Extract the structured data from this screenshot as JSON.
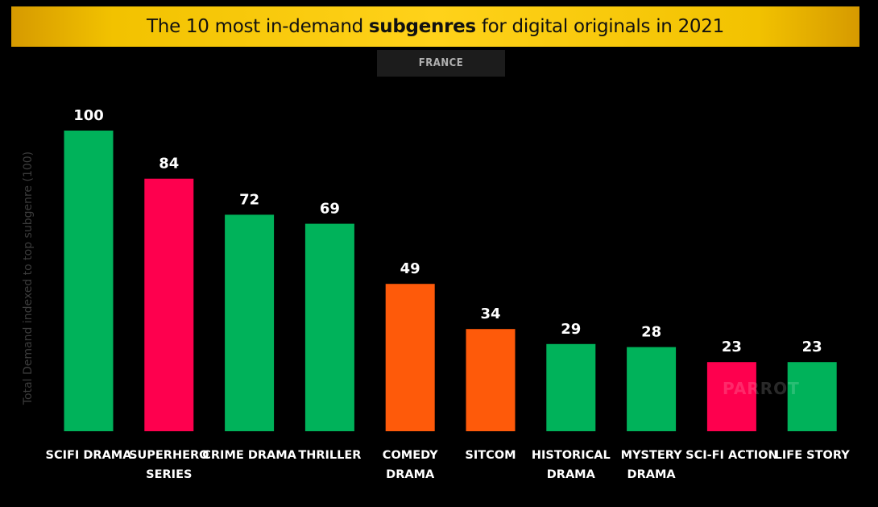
{
  "header": {
    "title_before": "The 10 most in-demand ",
    "title_bold": "subgenres",
    "title_after": " for digital originals in 2021",
    "subtitle": "FRANCE"
  },
  "watermark": "PARROT",
  "colors": {
    "green": "#00b25a",
    "red": "#fe004e",
    "orange": "#fe5a0a",
    "title_bar": "#ffd21a"
  },
  "chart_data": {
    "type": "bar",
    "title": "The 10 most in-demand subgenres for digital originals in 2021",
    "subtitle": "FRANCE",
    "xlabel": "",
    "ylabel": "Total Demand indexed to top subgenre (100)",
    "ylim": [
      0,
      100
    ],
    "grid": false,
    "legend": "none",
    "categories": [
      [
        "SCIFI DRAMA"
      ],
      [
        "SUPERHERO",
        "SERIES"
      ],
      [
        "CRIME DRAMA"
      ],
      [
        "THRILLER"
      ],
      [
        "COMEDY",
        "DRAMA"
      ],
      [
        "SITCOM"
      ],
      [
        "HISTORICAL",
        "DRAMA"
      ],
      [
        "MYSTERY",
        "DRAMA"
      ],
      [
        "SCI-FI ACTION"
      ],
      [
        "LIFE STORY"
      ]
    ],
    "values": [
      100,
      84,
      72,
      69,
      49,
      34,
      29,
      28,
      23,
      23
    ],
    "bar_colors": [
      "#00b25a",
      "#fe004e",
      "#00b25a",
      "#00b25a",
      "#fe5a0a",
      "#fe5a0a",
      "#00b25a",
      "#00b25a",
      "#fe004e",
      "#00b25a"
    ]
  }
}
